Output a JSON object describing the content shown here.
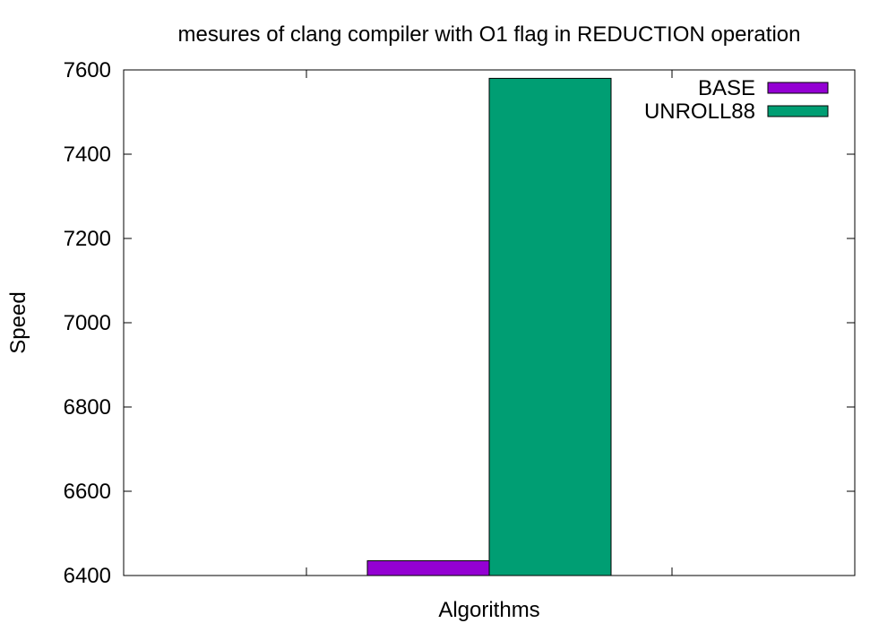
{
  "chart_data": {
    "type": "bar",
    "title": "mesures of clang compiler with O1 flag in REDUCTION operation",
    "xlabel": "Algorithms",
    "ylabel": "Speed",
    "ylim": [
      6400,
      7600
    ],
    "yticks": [
      6400,
      6600,
      6800,
      7000,
      7200,
      7400,
      7600
    ],
    "grid": false,
    "legend_position": "top-right",
    "categories": [
      ""
    ],
    "series": [
      {
        "name": "BASE",
        "color": "#9400d3",
        "values": [
          6435
        ]
      },
      {
        "name": "UNROLL88",
        "color": "#009e73",
        "values": [
          7580
        ]
      }
    ]
  }
}
